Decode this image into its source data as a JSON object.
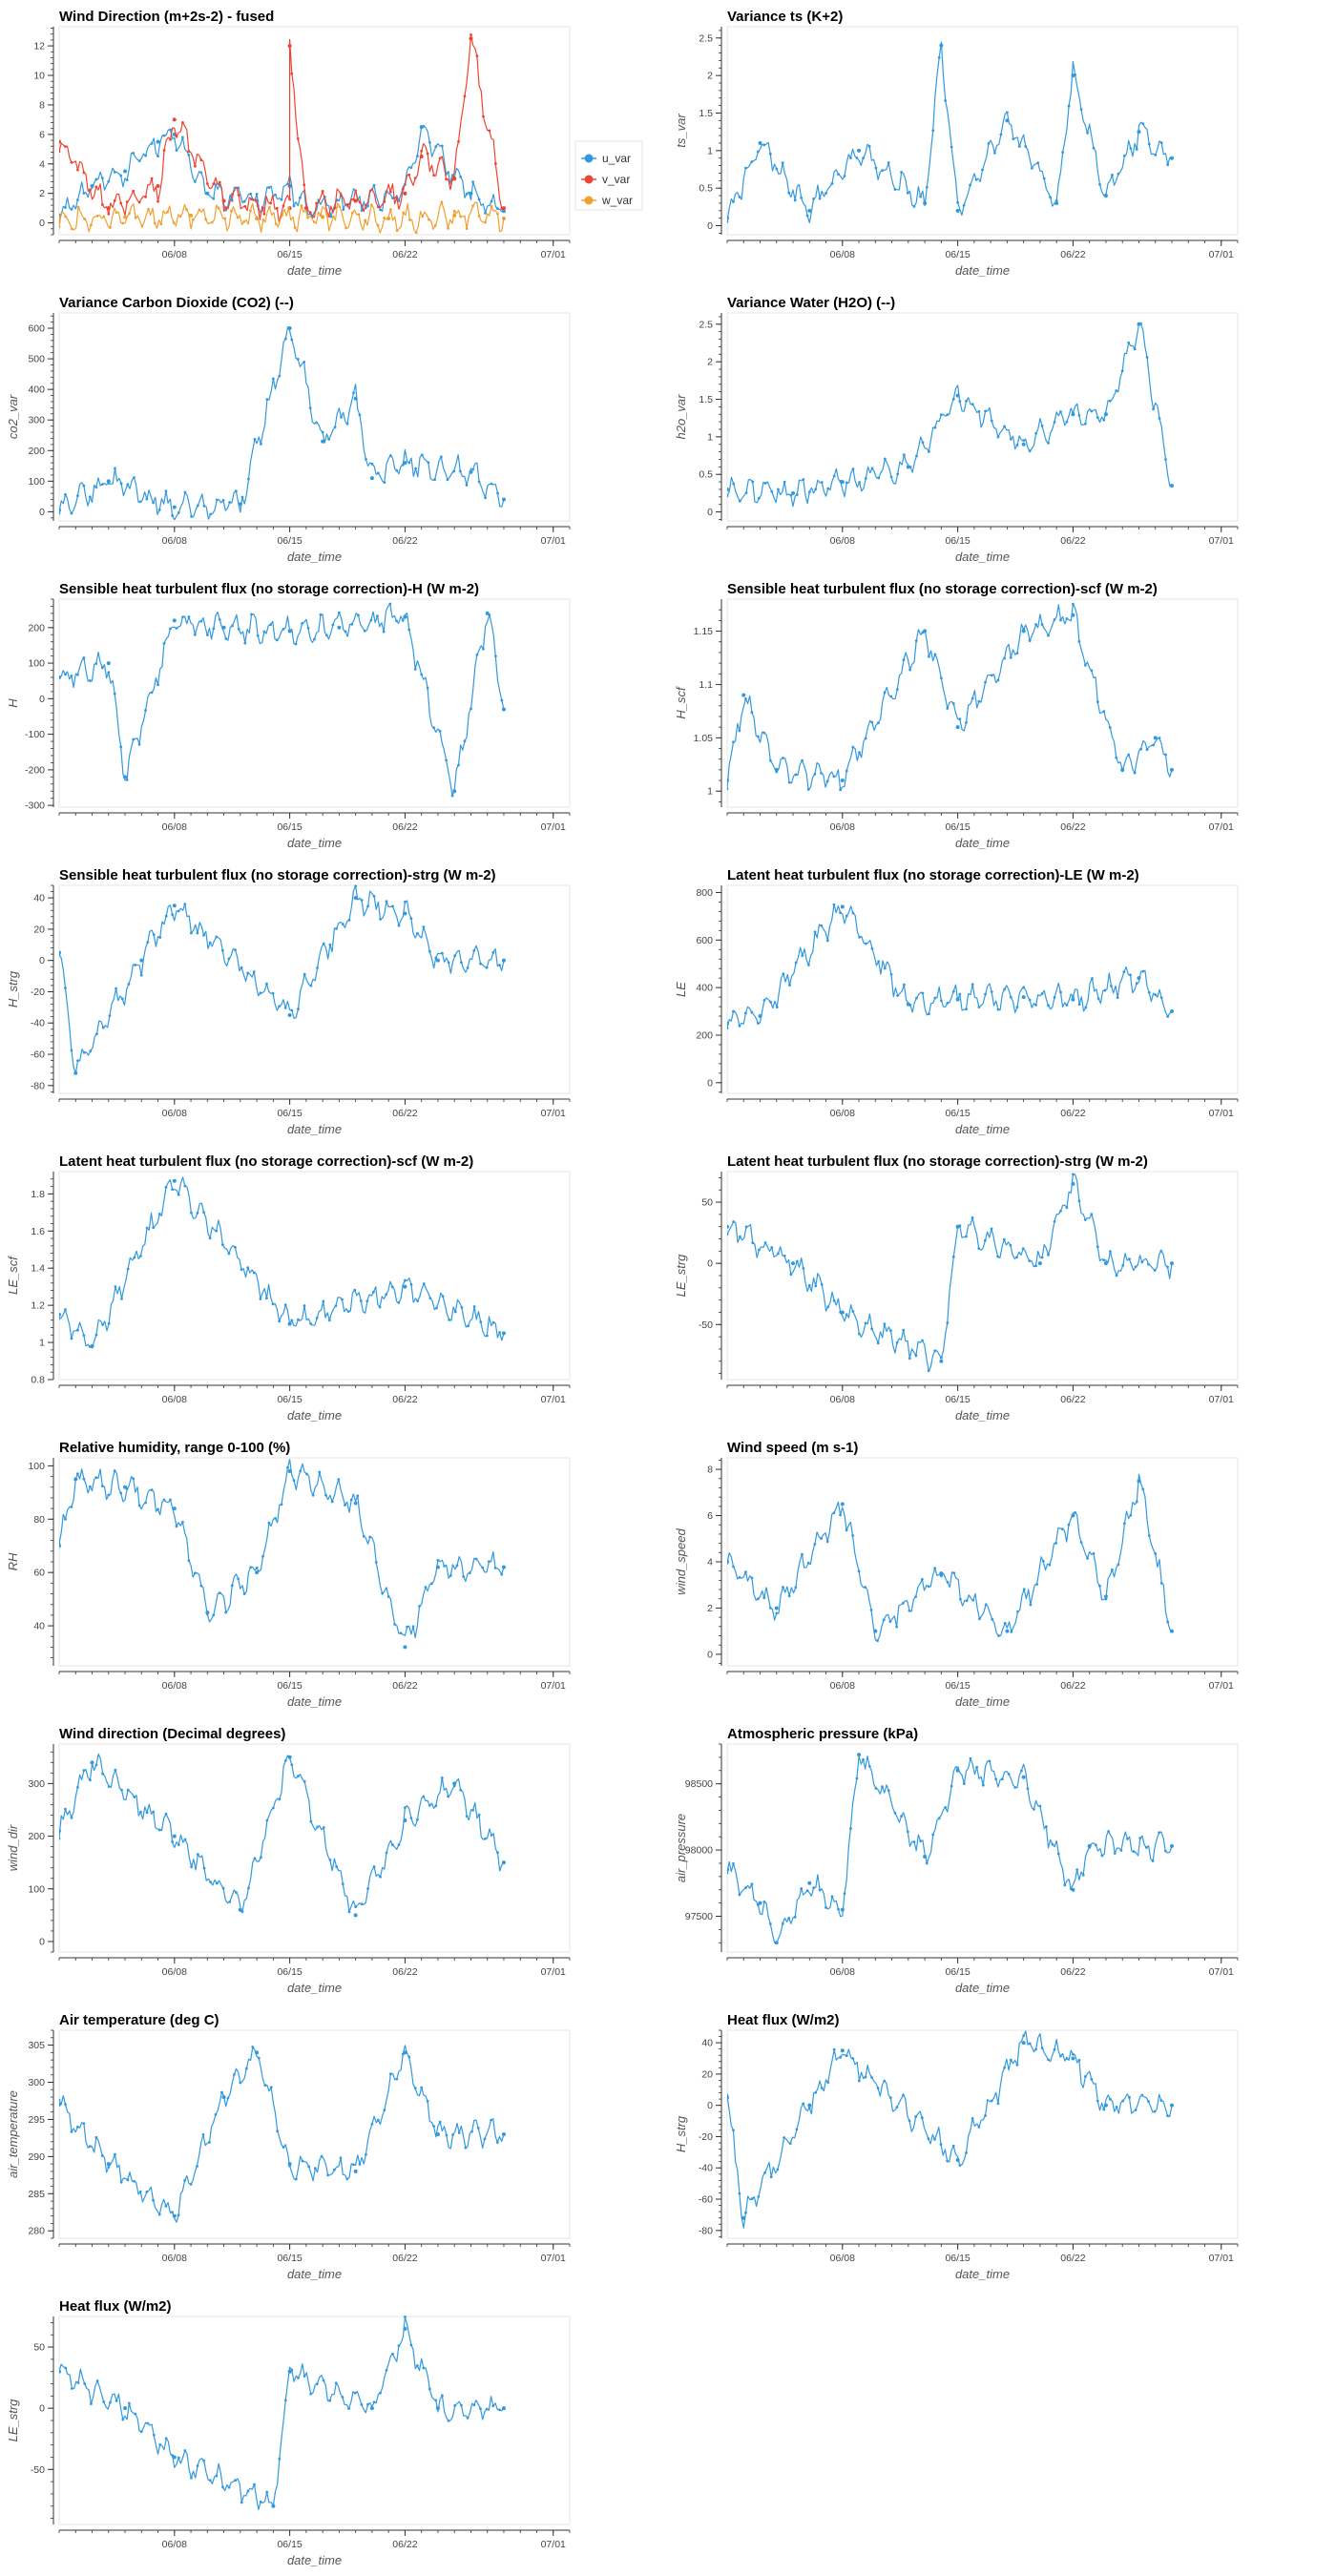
{
  "x_axis": {
    "label": "date_time",
    "ticks": [
      "06/08",
      "06/15",
      "06/22",
      "07/01"
    ],
    "start": "2021-06-01",
    "end": "2021-07-02"
  },
  "colors": {
    "blue": "#3399dd",
    "red": "#ee4433",
    "orange": "#f0a030"
  },
  "chart_data": [
    {
      "type": "line",
      "title": "Wind Direction (m+2s-2) - fused",
      "ylabel": "",
      "ylim": [
        -0.8,
        13.3
      ],
      "yticks": [
        0,
        2,
        4,
        6,
        8,
        10,
        12
      ],
      "legend_position": "right",
      "series": [
        {
          "name": "u_var",
          "color": "#3399dd",
          "x": [
            "06/01",
            "06/03",
            "06/05",
            "06/07",
            "06/08",
            "06/10",
            "06/13",
            "06/15",
            "06/16",
            "06/19",
            "06/22",
            "06/23",
            "06/25",
            "06/26",
            "06/28"
          ],
          "y": [
            0.5,
            2.5,
            3.5,
            5.5,
            6.0,
            2.0,
            1.5,
            2.5,
            1.0,
            1.5,
            2.0,
            6.5,
            3.0,
            2.0,
            0.8
          ]
        },
        {
          "name": "v_var",
          "color": "#ee4433",
          "x": [
            "06/01",
            "06/04",
            "06/07",
            "06/08",
            "06/11",
            "06/15",
            "06/15",
            "06/16",
            "06/19",
            "06/22",
            "06/23",
            "06/25",
            "06/26",
            "06/28"
          ],
          "y": [
            5.5,
            1.0,
            2.5,
            7.0,
            1.5,
            1.0,
            12.0,
            1.0,
            1.5,
            2.0,
            4.5,
            3.0,
            12.5,
            1.0
          ]
        },
        {
          "name": "w_var",
          "color": "#f0a030",
          "x": [
            "06/01",
            "06/05",
            "06/09",
            "06/13",
            "06/17",
            "06/21",
            "06/25",
            "06/28"
          ],
          "y": [
            0.3,
            0.4,
            0.5,
            0.3,
            0.4,
            0.3,
            0.5,
            0.3
          ]
        }
      ]
    },
    {
      "type": "line",
      "title": "Variance ts (K+2)",
      "ylabel": "ts_var",
      "ylim": [
        -0.12,
        2.65
      ],
      "yticks": [
        0,
        0.5,
        1,
        1.5,
        2,
        2.5
      ],
      "series": [
        {
          "x": [
            "06/01",
            "06/03",
            "06/06",
            "06/09",
            "06/13",
            "06/14",
            "06/15",
            "06/18",
            "06/21",
            "06/22",
            "06/24",
            "06/26",
            "06/28"
          ],
          "y": [
            0.1,
            1.1,
            0.2,
            1.0,
            0.3,
            2.4,
            0.2,
            1.4,
            0.3,
            2.0,
            0.4,
            1.25,
            0.9
          ]
        }
      ]
    },
    {
      "type": "line",
      "title": "Variance Carbon Dioxide (CO2) (--)",
      "ylabel": "co2_var",
      "ylim": [
        -30,
        650
      ],
      "yticks": [
        0,
        100,
        200,
        300,
        400,
        500,
        600
      ],
      "series": [
        {
          "x": [
            "06/01",
            "06/04",
            "06/08",
            "06/12",
            "06/15",
            "06/17",
            "06/19",
            "06/20",
            "06/22",
            "06/26",
            "06/28"
          ],
          "y": [
            5,
            100,
            15,
            25,
            600,
            230,
            370,
            110,
            160,
            130,
            40
          ]
        }
      ]
    },
    {
      "type": "line",
      "title": "Variance Water (H2O) (--)",
      "ylabel": "h2o_var",
      "ylim": [
        -0.12,
        2.65
      ],
      "yticks": [
        0,
        0.5,
        1,
        1.5,
        2,
        2.5
      ],
      "series": [
        {
          "x": [
            "06/01",
            "06/05",
            "06/08",
            "06/12",
            "06/15",
            "06/19",
            "06/22",
            "06/24",
            "06/26",
            "06/28"
          ],
          "y": [
            0.3,
            0.25,
            0.4,
            0.6,
            1.55,
            0.9,
            1.3,
            1.3,
            2.5,
            0.35
          ]
        }
      ]
    },
    {
      "type": "line",
      "title": "Sensible heat turbulent flux (no storage correction)-H (W m-2)",
      "ylabel": "H",
      "ylim": [
        -305,
        280
      ],
      "yticks": [
        -300,
        -200,
        -100,
        0,
        100,
        200
      ],
      "series": [
        {
          "x": [
            "06/01",
            "06/04",
            "06/05",
            "06/08",
            "06/11",
            "06/15",
            "06/18",
            "06/22",
            "06/25",
            "06/27",
            "06/28"
          ],
          "y": [
            60,
            100,
            -220,
            220,
            200,
            190,
            200,
            230,
            -260,
            240,
            -30
          ]
        }
      ]
    },
    {
      "type": "line",
      "title": "Sensible heat turbulent flux (no storage correction)-scf (W m-2)",
      "ylabel": "H_scf",
      "ylim": [
        0.985,
        1.18
      ],
      "yticks": [
        1,
        1.05,
        1.1,
        1.15
      ],
      "series": [
        {
          "x": [
            "06/01",
            "06/02",
            "06/04",
            "06/08",
            "06/13",
            "06/15",
            "06/19",
            "06/22",
            "06/25",
            "06/27",
            "06/28"
          ],
          "y": [
            1.01,
            1.09,
            1.02,
            1.01,
            1.15,
            1.06,
            1.15,
            1.165,
            1.02,
            1.05,
            1.02
          ]
        }
      ]
    },
    {
      "type": "line",
      "title": "Sensible heat turbulent flux (no storage correction)-strg (W m-2)",
      "ylabel": "H_strg",
      "ylim": [
        -85,
        48
      ],
      "yticks": [
        -80,
        -60,
        -40,
        -20,
        0,
        20,
        40
      ],
      "series": [
        {
          "x": [
            "06/01",
            "06/02",
            "06/06",
            "06/08",
            "06/15",
            "06/19",
            "06/22",
            "06/24",
            "06/28"
          ],
          "y": [
            5,
            -72,
            0,
            35,
            -35,
            40,
            30,
            0,
            0
          ]
        }
      ]
    },
    {
      "type": "line",
      "title": "Latent heat turbulent flux (no storage correction)-LE (W m-2)",
      "ylabel": "LE",
      "ylim": [
        -45,
        830
      ],
      "yticks": [
        0,
        200,
        400,
        600,
        800
      ],
      "series": [
        {
          "x": [
            "06/01",
            "06/03",
            "06/08",
            "06/12",
            "06/15",
            "06/19",
            "06/22",
            "06/26",
            "06/28"
          ],
          "y": [
            250,
            280,
            740,
            330,
            350,
            360,
            350,
            440,
            300
          ]
        }
      ]
    },
    {
      "type": "line",
      "title": "Latent heat turbulent flux (no storage correction)-scf (W m-2)",
      "ylabel": "LE_scf",
      "ylim": [
        0.8,
        1.92
      ],
      "yticks": [
        0.8,
        1,
        1.2,
        1.4,
        1.6,
        1.8
      ],
      "series": [
        {
          "x": [
            "06/01",
            "06/03",
            "06/08",
            "06/15",
            "06/22",
            "06/28"
          ],
          "y": [
            1.15,
            0.98,
            1.87,
            1.1,
            1.3,
            1.05
          ]
        }
      ]
    },
    {
      "type": "line",
      "title": "Latent heat turbulent flux (no storage correction)-strg (W m-2)",
      "ylabel": "LE_strg",
      "ylim": [
        -95,
        75
      ],
      "yticks": [
        -50,
        0,
        50
      ],
      "series": [
        {
          "x": [
            "06/01",
            "06/05",
            "06/08",
            "06/14",
            "06/15",
            "06/20",
            "06/22",
            "06/24",
            "06/28"
          ],
          "y": [
            30,
            0,
            -40,
            -80,
            30,
            0,
            65,
            0,
            0
          ]
        }
      ]
    },
    {
      "type": "line",
      "title": "Relative humidity, range 0-100 (%)",
      "ylabel": "RH",
      "ylim": [
        25,
        103
      ],
      "yticks": [
        40,
        60,
        80,
        100
      ],
      "series": [
        {
          "x": [
            "06/01",
            "06/02",
            "06/05",
            "06/08",
            "06/10",
            "06/13",
            "06/15",
            "06/19",
            "06/22",
            "06/24",
            "06/28"
          ],
          "y": [
            70,
            95,
            92,
            84,
            45,
            60,
            98,
            86,
            32,
            62,
            62
          ]
        }
      ]
    },
    {
      "type": "line",
      "title": "Wind speed (m s-1)",
      "ylabel": "wind_speed",
      "ylim": [
        -0.5,
        8.5
      ],
      "yticks": [
        0,
        2,
        4,
        6,
        8
      ],
      "series": [
        {
          "x": [
            "06/01",
            "06/04",
            "06/08",
            "06/10",
            "06/14",
            "06/18",
            "06/22",
            "06/24",
            "06/26",
            "06/28"
          ],
          "y": [
            4,
            2,
            6.5,
            1,
            3.5,
            1,
            6,
            2.5,
            7.5,
            1
          ]
        }
      ]
    },
    {
      "type": "line",
      "title": "Wind direction (Decimal degrees)",
      "ylabel": "wind_dir",
      "ylim": [
        -20,
        375
      ],
      "yticks": [
        0,
        100,
        200,
        300
      ],
      "series": [
        {
          "x": [
            "06/01",
            "06/03",
            "06/08",
            "06/12",
            "06/15",
            "06/19",
            "06/22",
            "06/25",
            "06/28"
          ],
          "y": [
            210,
            340,
            200,
            60,
            350,
            50,
            230,
            300,
            150
          ]
        }
      ]
    },
    {
      "type": "line",
      "title": "Atmospheric pressure (kPa)",
      "ylabel": "air_pressure",
      "ylim": [
        97230,
        98800
      ],
      "yticks": [
        97500,
        98000,
        98500
      ],
      "series": [
        {
          "x": [
            "06/01",
            "06/03",
            "06/04",
            "06/06",
            "06/08",
            "06/09",
            "06/13",
            "06/15",
            "06/19",
            "06/22",
            "06/23",
            "06/28"
          ],
          "y": [
            97850,
            97600,
            97300,
            97750,
            97550,
            98720,
            97950,
            98600,
            98550,
            97700,
            98030,
            98030
          ]
        }
      ]
    },
    {
      "type": "line",
      "title": "Air temperature (deg C)",
      "ylabel": "air_temperature",
      "ylim": [
        279,
        307
      ],
      "yticks": [
        280,
        285,
        290,
        295,
        300,
        305
      ],
      "series": [
        {
          "x": [
            "06/01",
            "06/04",
            "06/08",
            "06/11",
            "06/13",
            "06/15",
            "06/19",
            "06/22",
            "06/24",
            "06/28"
          ],
          "y": [
            297,
            289,
            282,
            298,
            304,
            289,
            288,
            304,
            293,
            293
          ]
        }
      ]
    },
    {
      "type": "line",
      "title": "Heat flux (W/m2)",
      "ylabel": "H_strg",
      "ylim": [
        -85,
        48
      ],
      "yticks": [
        -80,
        -60,
        -40,
        -20,
        0,
        20,
        40
      ],
      "series": [
        {
          "x": [
            "06/01",
            "06/02",
            "06/06",
            "06/08",
            "06/15",
            "06/19",
            "06/22",
            "06/24",
            "06/28"
          ],
          "y": [
            5,
            -72,
            0,
            35,
            -35,
            40,
            30,
            0,
            0
          ]
        }
      ]
    },
    {
      "type": "line",
      "title": "Heat flux (W/m2)",
      "ylabel": "LE_strg",
      "ylim": [
        -95,
        75
      ],
      "yticks": [
        -50,
        0,
        50
      ],
      "series": [
        {
          "x": [
            "06/01",
            "06/05",
            "06/08",
            "06/14",
            "06/15",
            "06/20",
            "06/22",
            "06/24",
            "06/28"
          ],
          "y": [
            30,
            0,
            -40,
            -80,
            30,
            0,
            65,
            0,
            0
          ]
        }
      ]
    }
  ]
}
